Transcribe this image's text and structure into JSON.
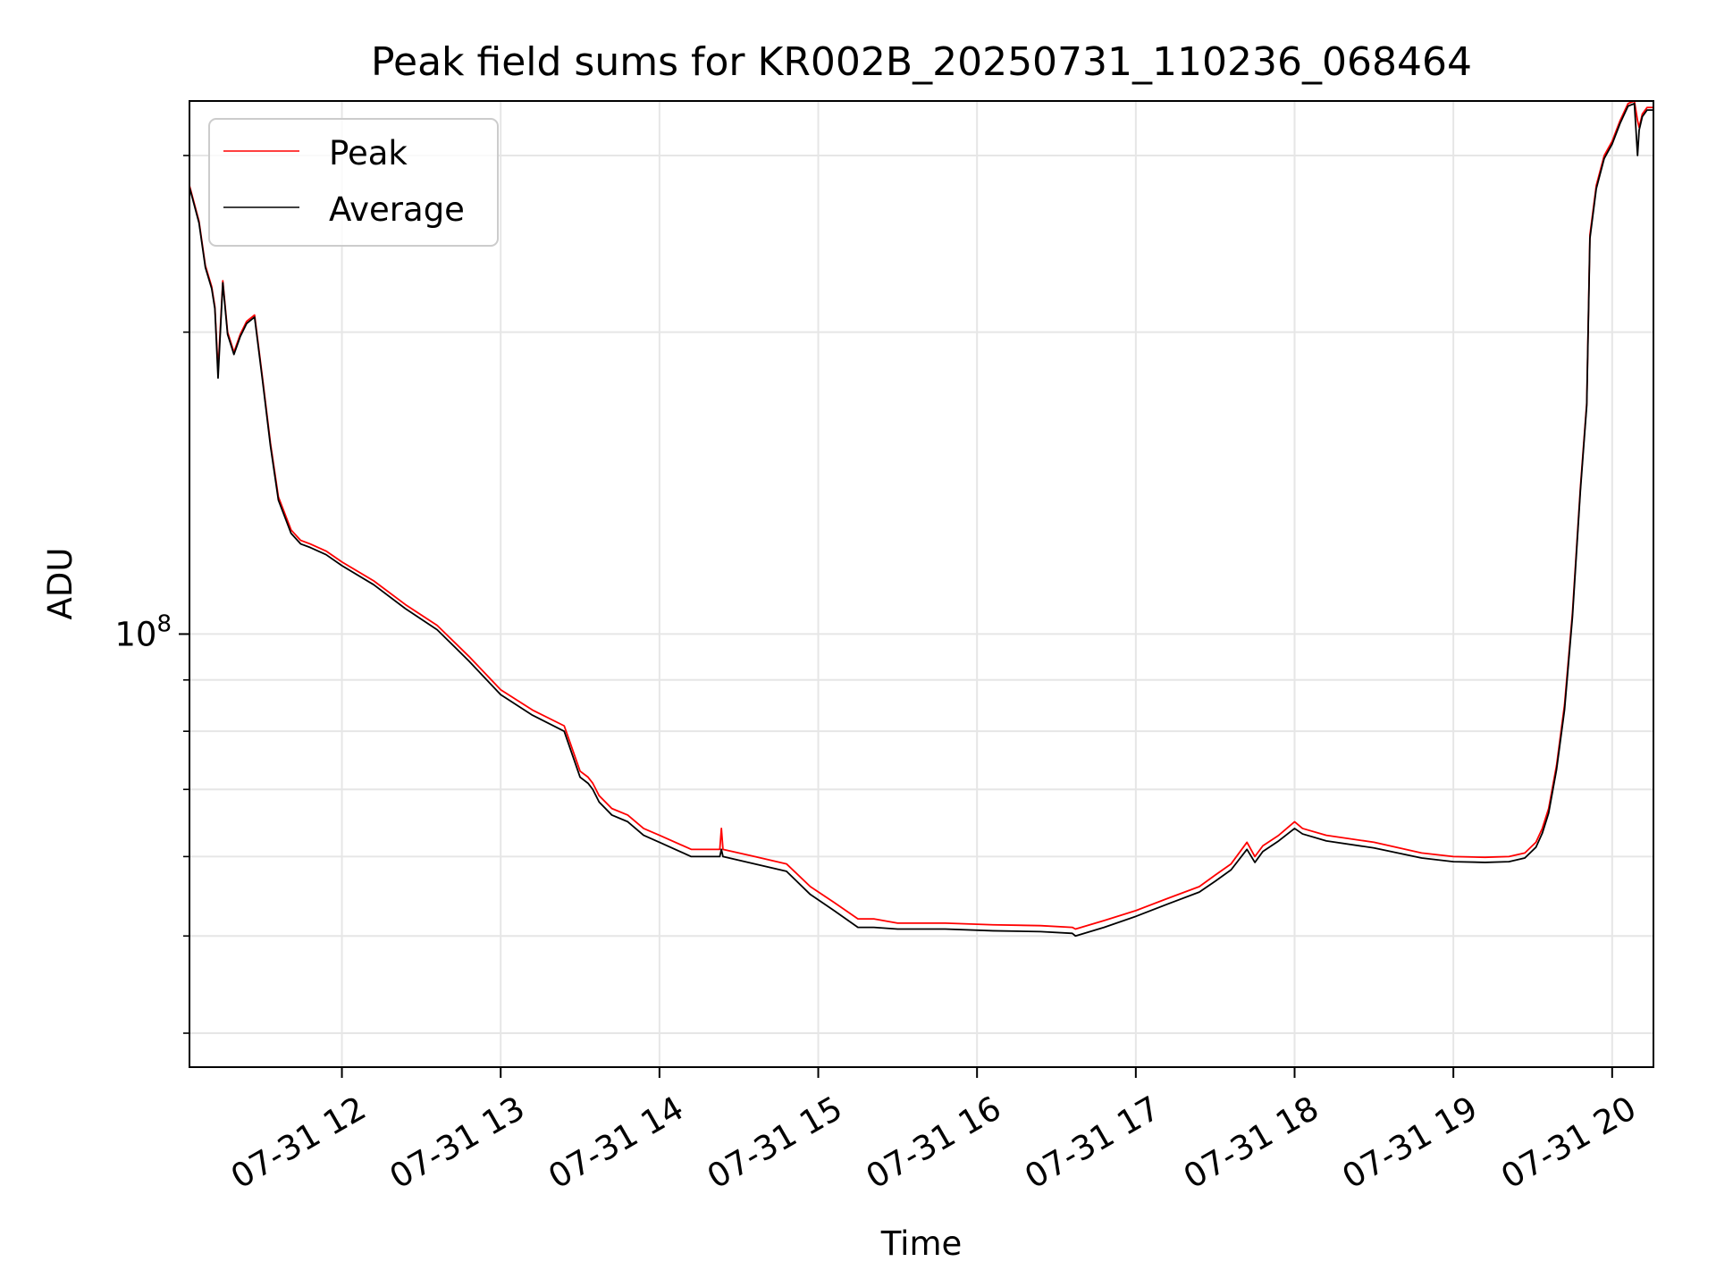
{
  "chart_data": {
    "type": "line",
    "title": "Peak field sums for KR002B_20250731_110236_068464",
    "xlabel": "Time",
    "ylabel": "ADU",
    "y_scale": "log",
    "grid": true,
    "legend_position": "top-left",
    "x_tick_labels": [
      "07-31 12",
      "07-31 13",
      "07-31 14",
      "07-31 15",
      "07-31 16",
      "07-31 17",
      "07-31 18",
      "07-31 19",
      "07-31 20"
    ],
    "x_tick_hours": [
      12,
      13,
      14,
      15,
      16,
      17,
      18,
      19,
      20
    ],
    "xlim_hours": [
      11.04,
      20.26
    ],
    "ylim": [
      37000000,
      340000000
    ],
    "y_major_ticks": [
      {
        "value": 100000000,
        "base": "10",
        "exponent": "8"
      }
    ],
    "y_minor_ticks": [
      40000000,
      50000000,
      60000000,
      70000000,
      80000000,
      90000000,
      200000000,
      300000000
    ],
    "series": [
      {
        "name": "Peak",
        "color": "#ff0000",
        "x_hours": [
          11.04,
          11.1,
          11.14,
          11.18,
          11.2,
          11.22,
          11.25,
          11.28,
          11.32,
          11.36,
          11.4,
          11.45,
          11.5,
          11.55,
          11.6,
          11.68,
          11.74,
          11.8,
          11.85,
          11.9,
          12.0,
          12.2,
          12.4,
          12.6,
          12.8,
          13.0,
          13.2,
          13.4,
          13.5,
          13.55,
          13.58,
          13.62,
          13.7,
          13.8,
          13.9,
          14.0,
          14.2,
          14.38,
          14.39,
          14.4,
          14.6,
          14.8,
          14.95,
          15.1,
          15.25,
          15.35,
          15.5,
          15.8,
          16.1,
          16.4,
          16.6,
          16.62,
          16.8,
          17.0,
          17.2,
          17.4,
          17.5,
          17.6,
          17.7,
          17.75,
          17.8,
          17.9,
          18.0,
          18.05,
          18.2,
          18.5,
          18.8,
          19.0,
          19.2,
          19.35,
          19.45,
          19.52,
          19.56,
          19.6,
          19.65,
          19.7,
          19.75,
          19.8,
          19.84,
          19.86,
          19.9,
          19.95,
          20.0,
          20.05,
          20.1,
          20.14,
          20.16,
          20.17,
          20.19,
          20.22,
          20.26
        ],
        "values": [
          280000000,
          258000000,
          233000000,
          222000000,
          212000000,
          183000000,
          225000000,
          200000000,
          191000000,
          199000000,
          205000000,
          208000000,
          180000000,
          155000000,
          137000000,
          127000000,
          124000000,
          123000000,
          122000000,
          121000000,
          118000000,
          113000000,
          107000000,
          102000000,
          95000000,
          88000000,
          84000000,
          81000000,
          73000000,
          72000000,
          71000000,
          69000000,
          67000000,
          66000000,
          64000000,
          63000000,
          61000000,
          61000000,
          64000000,
          61000000,
          60000000,
          59000000,
          56000000,
          54000000,
          52000000,
          52000000,
          51500000,
          51500000,
          51300000,
          51200000,
          51000000,
          50800000,
          51800000,
          53000000,
          54500000,
          56000000,
          57500000,
          59000000,
          62000000,
          60000000,
          61500000,
          63000000,
          65000000,
          64000000,
          63000000,
          62000000,
          60500000,
          60000000,
          59900000,
          60000000,
          60500000,
          62000000,
          64000000,
          67000000,
          74000000,
          85000000,
          105000000,
          140000000,
          170000000,
          250000000,
          280000000,
          300000000,
          310000000,
          325000000,
          338000000,
          340000000,
          325000000,
          320000000,
          330000000,
          335000000,
          335000000
        ]
      },
      {
        "name": "Average",
        "color": "#000000",
        "x_hours": [
          11.04,
          11.1,
          11.14,
          11.18,
          11.2,
          11.22,
          11.25,
          11.28,
          11.32,
          11.36,
          11.4,
          11.45,
          11.5,
          11.55,
          11.6,
          11.68,
          11.74,
          11.8,
          11.85,
          11.9,
          12.0,
          12.2,
          12.4,
          12.6,
          12.8,
          13.0,
          13.2,
          13.4,
          13.5,
          13.55,
          13.58,
          13.62,
          13.7,
          13.8,
          13.9,
          14.0,
          14.2,
          14.38,
          14.39,
          14.4,
          14.6,
          14.8,
          14.95,
          15.1,
          15.25,
          15.35,
          15.5,
          15.8,
          16.1,
          16.4,
          16.6,
          16.62,
          16.8,
          17.0,
          17.2,
          17.4,
          17.5,
          17.6,
          17.7,
          17.75,
          17.8,
          17.9,
          18.0,
          18.05,
          18.2,
          18.5,
          18.8,
          19.0,
          19.2,
          19.35,
          19.45,
          19.52,
          19.56,
          19.6,
          19.65,
          19.7,
          19.75,
          19.8,
          19.84,
          19.86,
          19.9,
          19.95,
          20.0,
          20.05,
          20.1,
          20.14,
          20.16,
          20.17,
          20.19,
          20.22,
          20.26
        ],
        "values": [
          279000000,
          257000000,
          232000000,
          221000000,
          211000000,
          180000000,
          224000000,
          199000000,
          190000000,
          198000000,
          204000000,
          207000000,
          179000000,
          154000000,
          136000000,
          126000000,
          123000000,
          122000000,
          121000000,
          120000000,
          117000000,
          112000000,
          106000000,
          101000000,
          94000000,
          87000000,
          83000000,
          80000000,
          72000000,
          71000000,
          70000000,
          68000000,
          66000000,
          65000000,
          63000000,
          62000000,
          60000000,
          60000000,
          61000000,
          60000000,
          59000000,
          58000000,
          55000000,
          53000000,
          51000000,
          51000000,
          50800000,
          50800000,
          50600000,
          50500000,
          50300000,
          50000000,
          51000000,
          52300000,
          53800000,
          55300000,
          56700000,
          58200000,
          61000000,
          59200000,
          60700000,
          62200000,
          64000000,
          63200000,
          62200000,
          61200000,
          59800000,
          59300000,
          59200000,
          59300000,
          59800000,
          61300000,
          63300000,
          66300000,
          73300000,
          84000000,
          104000000,
          139000000,
          169000000,
          248000000,
          278000000,
          298000000,
          308000000,
          323000000,
          336000000,
          338000000,
          300000000,
          318000000,
          328000000,
          333000000,
          333000000
        ]
      }
    ]
  }
}
